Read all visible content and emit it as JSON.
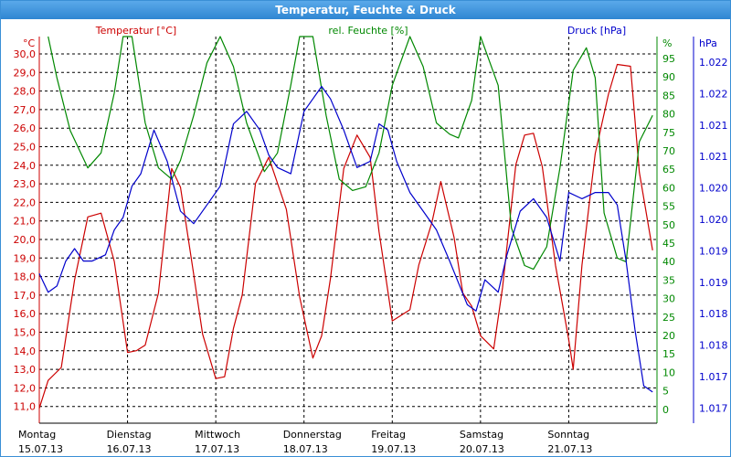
{
  "chart_data": {
    "type": "line",
    "title": "Temperatur, Feuchte & Druck",
    "days": [
      {
        "weekday": "Montag",
        "date": "15.07.13"
      },
      {
        "weekday": "Dienstag",
        "date": "16.07.13"
      },
      {
        "weekday": "Mittwoch",
        "date": "17.07.13"
      },
      {
        "weekday": "Donnerstag",
        "date": "18.07.13"
      },
      {
        "weekday": "Freitag",
        "date": "19.07.13"
      },
      {
        "weekday": "Samstag",
        "date": "20.07.13"
      },
      {
        "weekday": "Sonntag",
        "date": "21.07.13"
      }
    ],
    "x_unit": "day index (0 = 15.07.13 00:00)",
    "xlim": [
      0,
      7
    ],
    "axes": {
      "temperature": {
        "label": "Temperatur [°C]",
        "unit": "°C",
        "color": "#cc0000",
        "ylim": [
          10.5,
          31.3
        ],
        "ticks": [
          "30,0",
          "29,0",
          "28,0",
          "27,0",
          "26,0",
          "25,0",
          "24,0",
          "23,0",
          "22,0",
          "21,0",
          "20,0",
          "19,0",
          "18,0",
          "17,0",
          "16,0",
          "15,0",
          "14,0",
          "13,0",
          "12,0",
          "11,0"
        ]
      },
      "humidity": {
        "label": "rel. Feuchte [%]",
        "unit": "%",
        "color": "#008800",
        "ylim": [
          0,
          103
        ],
        "ticks": [
          "95",
          "90",
          "85",
          "80",
          "75",
          "70",
          "65",
          "60",
          "55",
          "50",
          "45",
          "40",
          "35",
          "30",
          "25",
          "20",
          "15",
          "10",
          "5",
          "0"
        ]
      },
      "pressure": {
        "label": "Druck [hPa]",
        "unit": "hPa",
        "color": "#0000cc",
        "ylim": [
          1016.4,
          1022.6
        ],
        "ticks": [
          "1.022",
          "1.022",
          "1.021",
          "1.021",
          "1.020",
          "1.020",
          "1.019",
          "1.019",
          "1.018",
          "1.018",
          "1.017",
          "1.017"
        ]
      }
    },
    "series": [
      {
        "name": "Temperatur [°C]",
        "axis": "temperature",
        "color": "#cc0000",
        "x": [
          0,
          0.1,
          0.25,
          0.4,
          0.55,
          0.7,
          0.85,
          1.0,
          1.1,
          1.2,
          1.35,
          1.5,
          1.6,
          1.75,
          1.85,
          2.0,
          2.1,
          2.2,
          2.3,
          2.45,
          2.6,
          2.8,
          2.95,
          3.1,
          3.2,
          3.3,
          3.45,
          3.6,
          3.75,
          3.85,
          4.0,
          4.2,
          4.3,
          4.45,
          4.55,
          4.7,
          4.8,
          4.9,
          5.0,
          5.15,
          5.25,
          5.4,
          5.5,
          5.6,
          5.7,
          5.85,
          6.0,
          6.05,
          6.15,
          6.3,
          6.45,
          6.55,
          6.7,
          6.8,
          6.95
        ],
        "values": [
          11.3,
          12.8,
          13.5,
          18.2,
          21.6,
          21.8,
          19.2,
          14.3,
          14.4,
          14.7,
          17.5,
          24.2,
          23.2,
          18.5,
          15.3,
          12.9,
          13.0,
          15.6,
          17.4,
          23.4,
          24.8,
          22.0,
          17.3,
          14.0,
          15.2,
          18.3,
          24.2,
          26.0,
          24.8,
          20.8,
          16.0,
          16.6,
          19.0,
          21.3,
          23.5,
          20.5,
          17.5,
          16.8,
          15.2,
          14.5,
          17.8,
          24.4,
          26.0,
          26.1,
          24.3,
          19.0,
          15.0,
          13.4,
          19.0,
          25.0,
          28.2,
          29.8,
          29.7,
          24.0,
          19.8
        ]
      },
      {
        "name": "rel. Feuchte [%]",
        "axis": "humidity",
        "color": "#008800",
        "x": [
          0.1,
          0.2,
          0.35,
          0.55,
          0.7,
          0.85,
          0.95,
          1.05,
          1.2,
          1.35,
          1.5,
          1.6,
          1.75,
          1.9,
          2.05,
          2.2,
          2.35,
          2.55,
          2.7,
          2.85,
          2.95,
          3.1,
          3.25,
          3.4,
          3.55,
          3.7,
          3.85,
          4.0,
          4.2,
          4.35,
          4.5,
          4.65,
          4.75,
          4.9,
          5.0,
          5.2,
          5.35,
          5.5,
          5.6,
          5.75,
          5.9,
          6.05,
          6.2,
          6.3,
          6.4,
          6.55,
          6.65,
          6.8,
          6.95
        ],
        "values": [
          103,
          92,
          78,
          68,
          72,
          88,
          103,
          103,
          80,
          68,
          65,
          70,
          82,
          96,
          103,
          95,
          80,
          67,
          72,
          90,
          103,
          103,
          82,
          65,
          62,
          63,
          72,
          90,
          103,
          95,
          80,
          77,
          76,
          86,
          103,
          90,
          52,
          42,
          41,
          47,
          68,
          94,
          100,
          92,
          56,
          44,
          43,
          75,
          82
        ]
      },
      {
        "name": "Druck [hPa]",
        "axis": "pressure",
        "color": "#0000cc",
        "x": [
          0,
          0.1,
          0.2,
          0.3,
          0.4,
          0.5,
          0.6,
          0.75,
          0.85,
          0.95,
          1.05,
          1.15,
          1.3,
          1.45,
          1.6,
          1.75,
          1.9,
          2.05,
          2.2,
          2.35,
          2.5,
          2.6,
          2.7,
          2.85,
          3.0,
          3.1,
          3.2,
          3.3,
          3.45,
          3.6,
          3.75,
          3.85,
          3.95,
          4.05,
          4.2,
          4.35,
          4.5,
          4.65,
          4.85,
          4.95,
          5.05,
          5.2,
          5.3,
          5.45,
          5.6,
          5.75,
          5.9,
          6.0,
          6.15,
          6.3,
          6.45,
          6.55,
          6.65,
          6.75,
          6.85,
          6.95
        ],
        "values": [
          1018.8,
          1018.5,
          1018.6,
          1019.0,
          1019.2,
          1019.0,
          1019.0,
          1019.1,
          1019.5,
          1019.7,
          1020.2,
          1020.4,
          1021.1,
          1020.6,
          1019.8,
          1019.6,
          1019.9,
          1020.2,
          1021.2,
          1021.4,
          1021.1,
          1020.7,
          1020.5,
          1020.4,
          1021.4,
          1021.6,
          1021.8,
          1021.6,
          1021.1,
          1020.5,
          1020.6,
          1021.2,
          1021.1,
          1020.6,
          1020.1,
          1019.8,
          1019.5,
          1019.0,
          1018.3,
          1018.2,
          1018.7,
          1018.5,
          1019.1,
          1019.8,
          1020.0,
          1019.7,
          1019.0,
          1020.1,
          1020.0,
          1020.1,
          1020.1,
          1019.9,
          1019.0,
          1017.9,
          1017.0,
          1016.9
        ]
      }
    ],
    "grid": true
  }
}
